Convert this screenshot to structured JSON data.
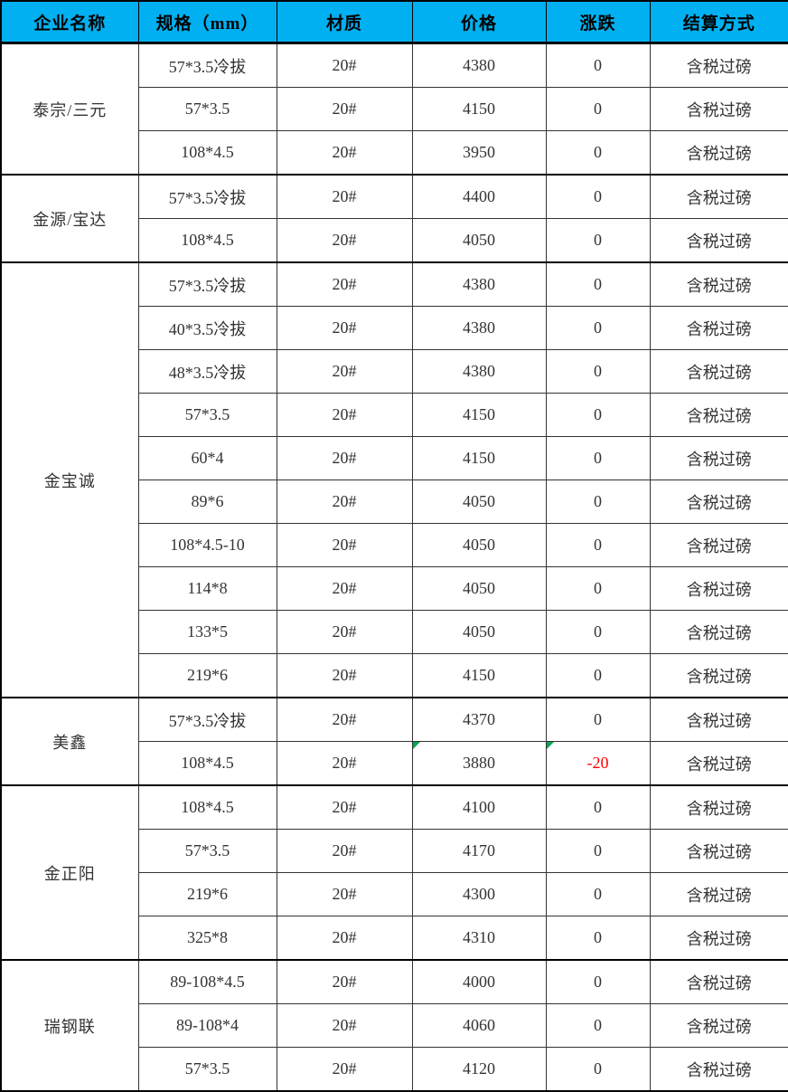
{
  "colors": {
    "header_bg": "#00B0F0",
    "header_text": "#000000",
    "body_text": "#333333",
    "negative": "#FF0000",
    "marker_green": "#00A651"
  },
  "table": {
    "headers": [
      "企业名称",
      "规格（mm）",
      "材质",
      "价格",
      "涨跌",
      "结算方式"
    ],
    "header_keys": [
      "company",
      "spec",
      "material",
      "price",
      "change",
      "settlement"
    ],
    "groups": [
      {
        "company": "泰宗/三元",
        "rows": [
          {
            "spec": "57*3.5冷拔",
            "material": "20#",
            "price": "4380",
            "change": "0",
            "settlement": "含税过磅"
          },
          {
            "spec": "57*3.5",
            "material": "20#",
            "price": "4150",
            "change": "0",
            "settlement": "含税过磅"
          },
          {
            "spec": "108*4.5",
            "material": "20#",
            "price": "3950",
            "change": "0",
            "settlement": "含税过磅"
          }
        ]
      },
      {
        "company": "金源/宝达",
        "rows": [
          {
            "spec": "57*3.5冷拔",
            "material": "20#",
            "price": "4400",
            "change": "0",
            "settlement": "含税过磅"
          },
          {
            "spec": "108*4.5",
            "material": "20#",
            "price": "4050",
            "change": "0",
            "settlement": "含税过磅"
          }
        ]
      },
      {
        "company": "金宝诚",
        "rows": [
          {
            "spec": "57*3.5冷拔",
            "material": "20#",
            "price": "4380",
            "change": "0",
            "settlement": "含税过磅"
          },
          {
            "spec": "40*3.5冷拔",
            "material": "20#",
            "price": "4380",
            "change": "0",
            "settlement": "含税过磅"
          },
          {
            "spec": "48*3.5冷拔",
            "material": "20#",
            "price": "4380",
            "change": "0",
            "settlement": "含税过磅"
          },
          {
            "spec": "57*3.5",
            "material": "20#",
            "price": "4150",
            "change": "0",
            "settlement": "含税过磅"
          },
          {
            "spec": "60*4",
            "material": "20#",
            "price": "4150",
            "change": "0",
            "settlement": "含税过磅"
          },
          {
            "spec": "89*6",
            "material": "20#",
            "price": "4050",
            "change": "0",
            "settlement": "含税过磅"
          },
          {
            "spec": "108*4.5-10",
            "material": "20#",
            "price": "4050",
            "change": "0",
            "settlement": "含税过磅"
          },
          {
            "spec": "114*8",
            "material": "20#",
            "price": "4050",
            "change": "0",
            "settlement": "含税过磅"
          },
          {
            "spec": "133*5",
            "material": "20#",
            "price": "4050",
            "change": "0",
            "settlement": "含税过磅"
          },
          {
            "spec": "219*6",
            "material": "20#",
            "price": "4150",
            "change": "0",
            "settlement": "含税过磅"
          }
        ]
      },
      {
        "company": "美鑫",
        "rows": [
          {
            "spec": "57*3.5冷拔",
            "material": "20#",
            "price": "4370",
            "change": "0",
            "settlement": "含税过磅"
          },
          {
            "spec": "108*4.5",
            "material": "20#",
            "price": "3880",
            "change": "-20",
            "settlement": "含税过磅",
            "markers": [
              "price",
              "change"
            ]
          }
        ]
      },
      {
        "company": "金正阳",
        "rows": [
          {
            "spec": "108*4.5",
            "material": "20#",
            "price": "4100",
            "change": "0",
            "settlement": "含税过磅"
          },
          {
            "spec": "57*3.5",
            "material": "20#",
            "price": "4170",
            "change": "0",
            "settlement": "含税过磅"
          },
          {
            "spec": "219*6",
            "material": "20#",
            "price": "4300",
            "change": "0",
            "settlement": "含税过磅"
          },
          {
            "spec": "325*8",
            "material": "20#",
            "price": "4310",
            "change": "0",
            "settlement": "含税过磅"
          }
        ]
      },
      {
        "company": "瑞钢联",
        "rows": [
          {
            "spec": "89-108*4.5",
            "material": "20#",
            "price": "4000",
            "change": "0",
            "settlement": "含税过磅"
          },
          {
            "spec": "89-108*4",
            "material": "20#",
            "price": "4060",
            "change": "0",
            "settlement": "含税过磅"
          },
          {
            "spec": "57*3.5",
            "material": "20#",
            "price": "4120",
            "change": "0",
            "settlement": "含税过磅"
          }
        ]
      }
    ]
  }
}
